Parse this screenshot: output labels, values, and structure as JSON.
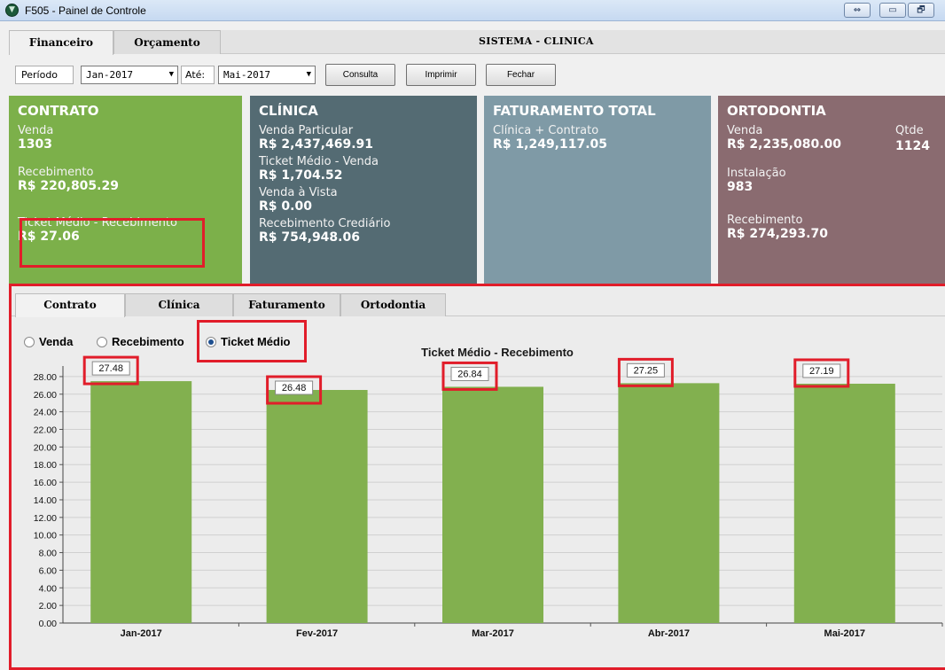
{
  "window": {
    "title": "F505 - Painel de Controle",
    "buttons": [
      "⇔",
      "▭",
      "🗗"
    ]
  },
  "top_tabs": {
    "items": [
      {
        "label": "Financeiro",
        "active": true
      },
      {
        "label": "Orçamento",
        "active": false
      }
    ],
    "system_label": "SISTEMA - CLINICA"
  },
  "filters": {
    "periodo_label": "Período",
    "from_value": "Jan-2017",
    "ate_label": "Até:",
    "to_value": "Mai-2017",
    "consulta": "Consulta",
    "imprimir": "Imprimir",
    "fechar": "Fechar"
  },
  "cards": {
    "contrato": {
      "title": "CONTRATO",
      "venda_label": "Venda",
      "venda_value": "1303",
      "recebimento_label": "Recebimento",
      "recebimento_value": "R$ 220,805.29",
      "ticket_label": "Ticket Médio - Recebimento",
      "ticket_value": "R$ 27.06",
      "color": "#7cb04a"
    },
    "clinica": {
      "title": "CLÍNICA",
      "venda_particular_label": "Venda Particular",
      "venda_particular_value": "R$ 2,437,469.91",
      "ticket_label": "Ticket Médio - Venda",
      "ticket_value": "R$ 1,704.52",
      "vista_label": "Venda à Vista",
      "vista_value": "R$ 0.00",
      "crediario_label": "Recebimento Crediário",
      "crediario_value": "R$ 754,948.06",
      "color": "#546b73"
    },
    "faturamento": {
      "title": "FATURAMENTO TOTAL",
      "label": "Clínica + Contrato",
      "value": "R$ 1,249,117.05",
      "color": "#7f9aa6"
    },
    "ortodontia": {
      "title": "ORTODONTIA",
      "venda_label": "Venda",
      "venda_value": "R$ 2,235,080.00",
      "qtde_label": "Qtde",
      "qtde_value": "1124",
      "instalacao_label": "Instalação",
      "instalacao_value": "983",
      "recebimento_label": "Recebimento",
      "recebimento_value": "R$ 274,293.70",
      "color": "#8a6b70"
    }
  },
  "sub_tabs": [
    {
      "label": "Contrato",
      "active": true
    },
    {
      "label": "Clínica",
      "active": false
    },
    {
      "label": "Faturamento",
      "active": false
    },
    {
      "label": "Ortodontia",
      "active": false
    }
  ],
  "radios": [
    {
      "label": "Venda",
      "checked": false
    },
    {
      "label": "Recebimento",
      "checked": false
    },
    {
      "label": "Ticket Médio",
      "checked": true
    }
  ],
  "highlight_color": "#e11d2a",
  "chart_data": {
    "type": "bar",
    "title": "Ticket Médio - Recebimento",
    "categories": [
      "Jan-2017",
      "Fev-2017",
      "Mar-2017",
      "Abr-2017",
      "Mai-2017"
    ],
    "values": [
      27.48,
      26.48,
      26.84,
      27.25,
      27.19
    ],
    "value_labels": [
      "27.48",
      "26.48",
      "26.84",
      "27.25",
      "27.19"
    ],
    "ylim": [
      0,
      29.2
    ],
    "yticks": [
      "0.00",
      "2.00",
      "4.00",
      "6.00",
      "8.00",
      "10.00",
      "12.00",
      "14.00",
      "16.00",
      "18.00",
      "20.00",
      "22.00",
      "24.00",
      "26.00",
      "28.00"
    ],
    "grid": true,
    "legend": "none",
    "bar_color": "#82b04f"
  }
}
